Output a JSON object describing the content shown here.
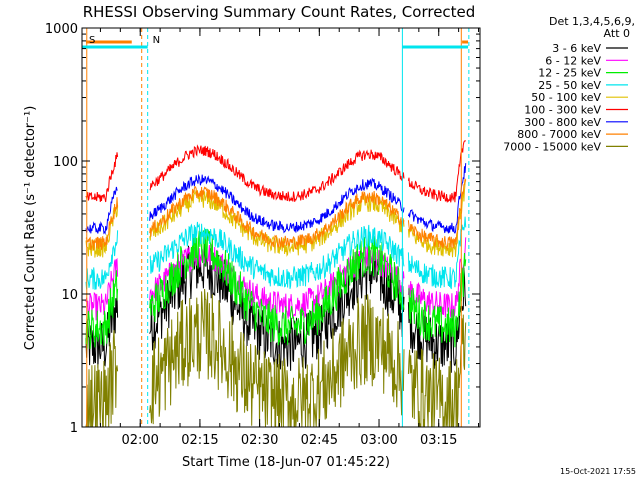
{
  "chart_data": {
    "type": "line",
    "title": "RHESSI Observing Summary Count Rates, Corrected",
    "xlabel": "Start Time (18-Jun-07 01:45:22)",
    "ylabel": "Corrected Count Rate (s⁻¹ detector⁻¹)",
    "yscale": "log",
    "ylim": [
      1,
      1000
    ],
    "xlim_minutes": [
      0,
      100
    ],
    "x_ticks": [
      {
        "label": "02:00",
        "minutes": 14.63
      },
      {
        "label": "02:15",
        "minutes": 29.63
      },
      {
        "label": "02:30",
        "minutes": 44.63
      },
      {
        "label": "02:45",
        "minutes": 59.63
      },
      {
        "label": "03:00",
        "minutes": 74.63
      },
      {
        "label": "03:15",
        "minutes": 89.63
      }
    ],
    "y_ticks": [
      {
        "label": "1",
        "value": 1
      },
      {
        "label": "10",
        "value": 10
      },
      {
        "label": "100",
        "value": 100
      },
      {
        "label": "1000",
        "value": 1000
      }
    ],
    "legend_header": [
      "Det 1,3,4,5,6,9,",
      "Att 0"
    ],
    "data_windows_minutes": [
      [
        1,
        9
      ],
      [
        17,
        81
      ],
      [
        82,
        96.5
      ]
    ],
    "gaps_minutes": [
      [
        9,
        17
      ],
      [
        81,
        82
      ]
    ],
    "annotations": [
      {
        "text": "S",
        "minutes": 1,
        "color": "#ff8000"
      },
      {
        "text": "N",
        "minutes": 17,
        "color": "#00e5ee"
      }
    ],
    "markers": [
      {
        "type": "saa",
        "label": "S",
        "color": "#ff8000",
        "segments_minutes": [
          [
            1,
            12.5
          ],
          [
            95.5,
            97
          ]
        ]
      },
      {
        "type": "night",
        "label": "N",
        "color": "#00e5ee",
        "segments_minutes": [
          [
            -1,
            16.5
          ],
          [
            80.5,
            97
          ]
        ]
      }
    ],
    "vertical_lines_minutes": [
      {
        "minutes": 1.2,
        "color": "#ff8000",
        "style": "solid"
      },
      {
        "minutes": 15.0,
        "color": "#ff8000",
        "style": "dashed"
      },
      {
        "minutes": 16.5,
        "color": "#00e5ee",
        "style": "dashed"
      },
      {
        "minutes": 80.5,
        "color": "#00e5ee",
        "style": "solid"
      },
      {
        "minutes": 95.3,
        "color": "#ff8000",
        "style": "solid"
      },
      {
        "minutes": 97.2,
        "color": "#00e5ee",
        "style": "dashed"
      }
    ],
    "series": [
      {
        "name": "3 - 6 keV",
        "color": "#000000",
        "baseline": 4,
        "peak": 16,
        "noise": 0.6
      },
      {
        "name": "6 - 12 keV",
        "color": "#ff00ff",
        "baseline": 8,
        "peak": 20,
        "noise": 0.3
      },
      {
        "name": "12 - 25 keV",
        "color": "#00ee00",
        "baseline": 5.5,
        "peak": 22,
        "noise": 0.45
      },
      {
        "name": "25 - 50 keV",
        "color": "#00e5ee",
        "baseline": 13,
        "peak": 29,
        "noise": 0.25
      },
      {
        "name": "50 - 100 keV",
        "color": "#e0c000",
        "baseline": 22,
        "peak": 52,
        "noise": 0.2
      },
      {
        "name": "100 - 300 keV",
        "color": "#ff0000",
        "baseline": 53,
        "peak": 120,
        "noise": 0.12
      },
      {
        "name": "300 - 800 keV",
        "color": "#0000ff",
        "baseline": 31,
        "peak": 72,
        "noise": 0.12
      },
      {
        "name": "800 - 7000 keV",
        "color": "#ff8000",
        "baseline": 24,
        "peak": 58,
        "noise": 0.15
      },
      {
        "name": "7000 - 15000 keV",
        "color": "#808000",
        "baseline": 1.5,
        "peak": 5,
        "noise": 1.0
      }
    ]
  },
  "timestamp": "15-Oct-2021 17:55"
}
